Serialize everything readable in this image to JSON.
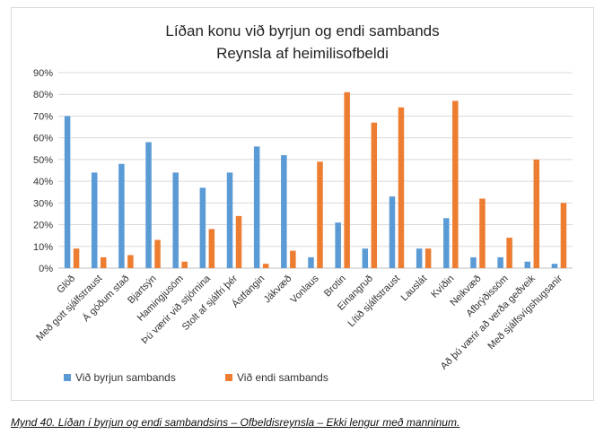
{
  "chart_data": {
    "type": "bar",
    "title": "Líðan konu við byrjun og endi sambands",
    "subtitle": "Reynsla af heimilisofbeldi",
    "categories": [
      "Glöð",
      "Með gott sjálfstraust",
      "Á góðum stað",
      "Bjartsýn",
      "Hamingjusöm",
      "Þú værir við stjórnina",
      "Stolt af sjálfri þér",
      "Ástfangin",
      "Jákvæð",
      "Vonlaus",
      "Brotin",
      "Einangruð",
      "Lítið sjálfstraust",
      "Lauslát",
      "Kvíðin",
      "Neikvæð",
      "Afbrýðissöm",
      "Að þú værir að verða geðveik",
      "Með sjálfsvígshugsanir"
    ],
    "series": [
      {
        "name": "Við byrjun sambands",
        "color": "#5b9bd5",
        "values": [
          70,
          44,
          48,
          58,
          44,
          37,
          44,
          56,
          52,
          5,
          21,
          9,
          33,
          9,
          23,
          5,
          5,
          3,
          2
        ]
      },
      {
        "name": "Við endi sambands",
        "color": "#ed7d31",
        "values": [
          9,
          5,
          6,
          13,
          3,
          18,
          24,
          2,
          8,
          49,
          81,
          67,
          74,
          9,
          77,
          32,
          14,
          50,
          30
        ]
      }
    ],
    "yticks": [
      "0%",
      "10%",
      "20%",
      "30%",
      "40%",
      "50%",
      "60%",
      "70%",
      "80%",
      "90%"
    ],
    "ylim": [
      0,
      90
    ],
    "grid": true,
    "legend": "bottom-left"
  },
  "caption": "Mynd 40. Líðan í byrjun og endi sambandsins – Ofbeldisreynsla – Ekki lengur með manninum."
}
